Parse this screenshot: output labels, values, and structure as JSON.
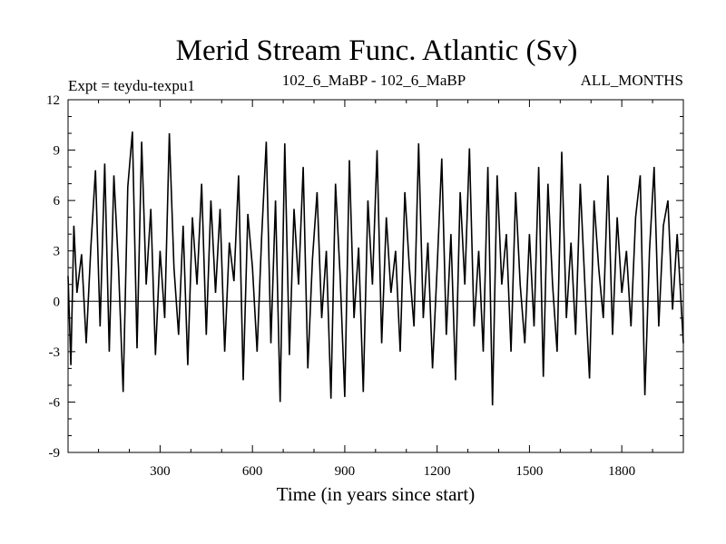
{
  "chart_data": {
    "type": "line",
    "title": "Merid Stream Func. Atlantic (Sv)",
    "subtitle_left": "Expt = teydu-texpu1",
    "subtitle_center": "102_6_MaBP - 102_6_MaBP",
    "subtitle_right": "ALL_MONTHS",
    "xlabel": "Time (in years since start)",
    "ylabel": "",
    "xlim": [
      1,
      2000
    ],
    "ylim": [
      -9,
      12
    ],
    "xticks": [
      300,
      600,
      900,
      1200,
      1500,
      1800
    ],
    "yticks": [
      -9,
      -6,
      -3,
      0,
      3,
      6,
      9,
      12
    ],
    "zero_line": true,
    "grid": false,
    "series": [
      {
        "color": "#000000",
        "x": [
          1,
          10,
          20,
          30,
          45,
          60,
          75,
          90,
          105,
          120,
          135,
          150,
          165,
          180,
          195,
          210,
          225,
          240,
          255,
          270,
          285,
          300,
          315,
          330,
          345,
          360,
          375,
          390,
          405,
          420,
          435,
          450,
          465,
          480,
          495,
          510,
          525,
          540,
          555,
          570,
          585,
          600,
          615,
          630,
          645,
          660,
          675,
          690,
          705,
          720,
          735,
          750,
          765,
          780,
          795,
          810,
          825,
          840,
          855,
          870,
          885,
          900,
          915,
          930,
          945,
          960,
          975,
          990,
          1005,
          1020,
          1035,
          1050,
          1065,
          1080,
          1095,
          1110,
          1125,
          1140,
          1155,
          1170,
          1185,
          1200,
          1215,
          1230,
          1245,
          1260,
          1275,
          1290,
          1305,
          1320,
          1335,
          1350,
          1365,
          1380,
          1395,
          1410,
          1425,
          1440,
          1455,
          1470,
          1485,
          1500,
          1515,
          1530,
          1545,
          1560,
          1575,
          1590,
          1605,
          1620,
          1635,
          1650,
          1665,
          1680,
          1695,
          1710,
          1725,
          1740,
          1755,
          1770,
          1785,
          1800,
          1815,
          1830,
          1845,
          1860,
          1875,
          1890,
          1905,
          1920,
          1935,
          1950,
          1965,
          1980,
          2000
        ],
        "y": [
          1.5,
          -3.8,
          4.5,
          0.5,
          2.8,
          -2.5,
          3.2,
          7.8,
          -1.5,
          8.2,
          -3.0,
          7.5,
          2.0,
          -5.4,
          6.8,
          10.1,
          -2.8,
          9.5,
          1.0,
          5.5,
          -3.2,
          3.0,
          -1.0,
          10.0,
          2.0,
          -2.0,
          4.5,
          -3.8,
          5.0,
          1.0,
          7.0,
          -2.0,
          6.0,
          0.5,
          5.5,
          -3.0,
          3.5,
          1.2,
          7.5,
          -4.7,
          5.2,
          2.0,
          -3.0,
          3.8,
          9.5,
          -2.5,
          6.0,
          -6.0,
          9.4,
          -3.2,
          5.5,
          1.0,
          8.0,
          -4.0,
          2.5,
          6.5,
          -1.0,
          3.0,
          -5.8,
          7.0,
          1.5,
          -5.7,
          8.4,
          -1.0,
          3.2,
          -5.4,
          6.0,
          1.0,
          9.0,
          -2.5,
          5.0,
          0.5,
          3.0,
          -3.0,
          6.5,
          2.0,
          -1.5,
          9.4,
          -1.0,
          3.5,
          -4.0,
          2.0,
          8.5,
          -2.0,
          4.0,
          -4.7,
          6.5,
          1.0,
          9.1,
          -1.5,
          3.0,
          -3.0,
          8.0,
          -6.2,
          7.5,
          1.0,
          4.0,
          -3.0,
          6.5,
          1.0,
          -2.5,
          4.0,
          -1.5,
          8.0,
          -4.5,
          7.0,
          1.0,
          -3.0,
          8.9,
          -1.0,
          3.5,
          -2.0,
          7.0,
          1.0,
          -4.6,
          6.0,
          2.0,
          -1.0,
          7.5,
          -2.0,
          5.0,
          0.5,
          3.0,
          -1.5,
          5.0,
          7.5,
          -5.6,
          3.0,
          8.0,
          -1.5,
          4.5,
          6.0,
          -0.5,
          4.0,
          -2.5
        ]
      }
    ]
  }
}
